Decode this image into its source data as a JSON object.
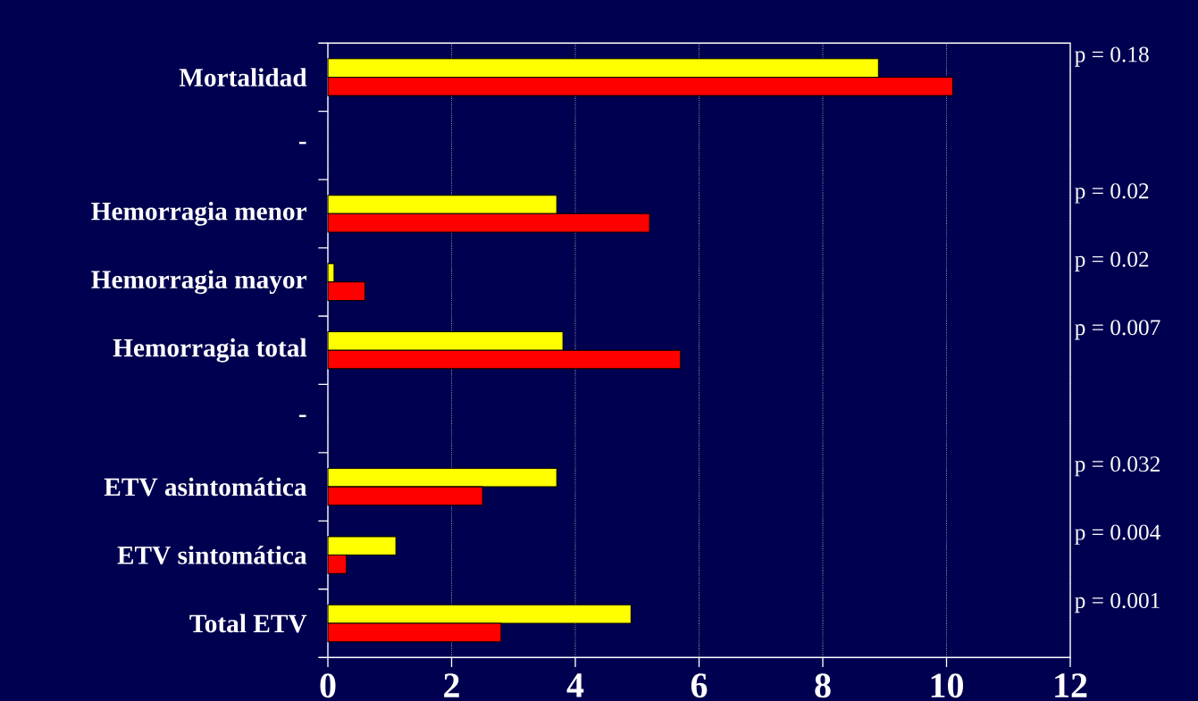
{
  "chart_data": {
    "type": "bar",
    "orientation": "horizontal",
    "categories": [
      "Mortalidad",
      "-",
      "Hemorragia menor",
      "Hemorragia mayor",
      "Hemorragia total",
      "-",
      "ETV asintomática",
      "ETV sintomática",
      "Total ETV"
    ],
    "series": [
      {
        "color": "#ffff00",
        "values": [
          8.9,
          null,
          3.7,
          0.1,
          3.8,
          null,
          3.7,
          1.1,
          4.9
        ]
      },
      {
        "color": "#ff0000",
        "values": [
          10.1,
          null,
          5.2,
          0.6,
          5.7,
          null,
          2.5,
          0.3,
          2.8
        ]
      }
    ],
    "xlim": [
      0,
      12
    ],
    "xticks": [
      0,
      2,
      4,
      6,
      8,
      10,
      12
    ],
    "grid": "x",
    "annotations": [
      "p = 0.18",
      "p = 0.02",
      "p = 0.02",
      "p = 0.007",
      "p = 0.032",
      "p = 0.004",
      "p = 0.001"
    ]
  }
}
